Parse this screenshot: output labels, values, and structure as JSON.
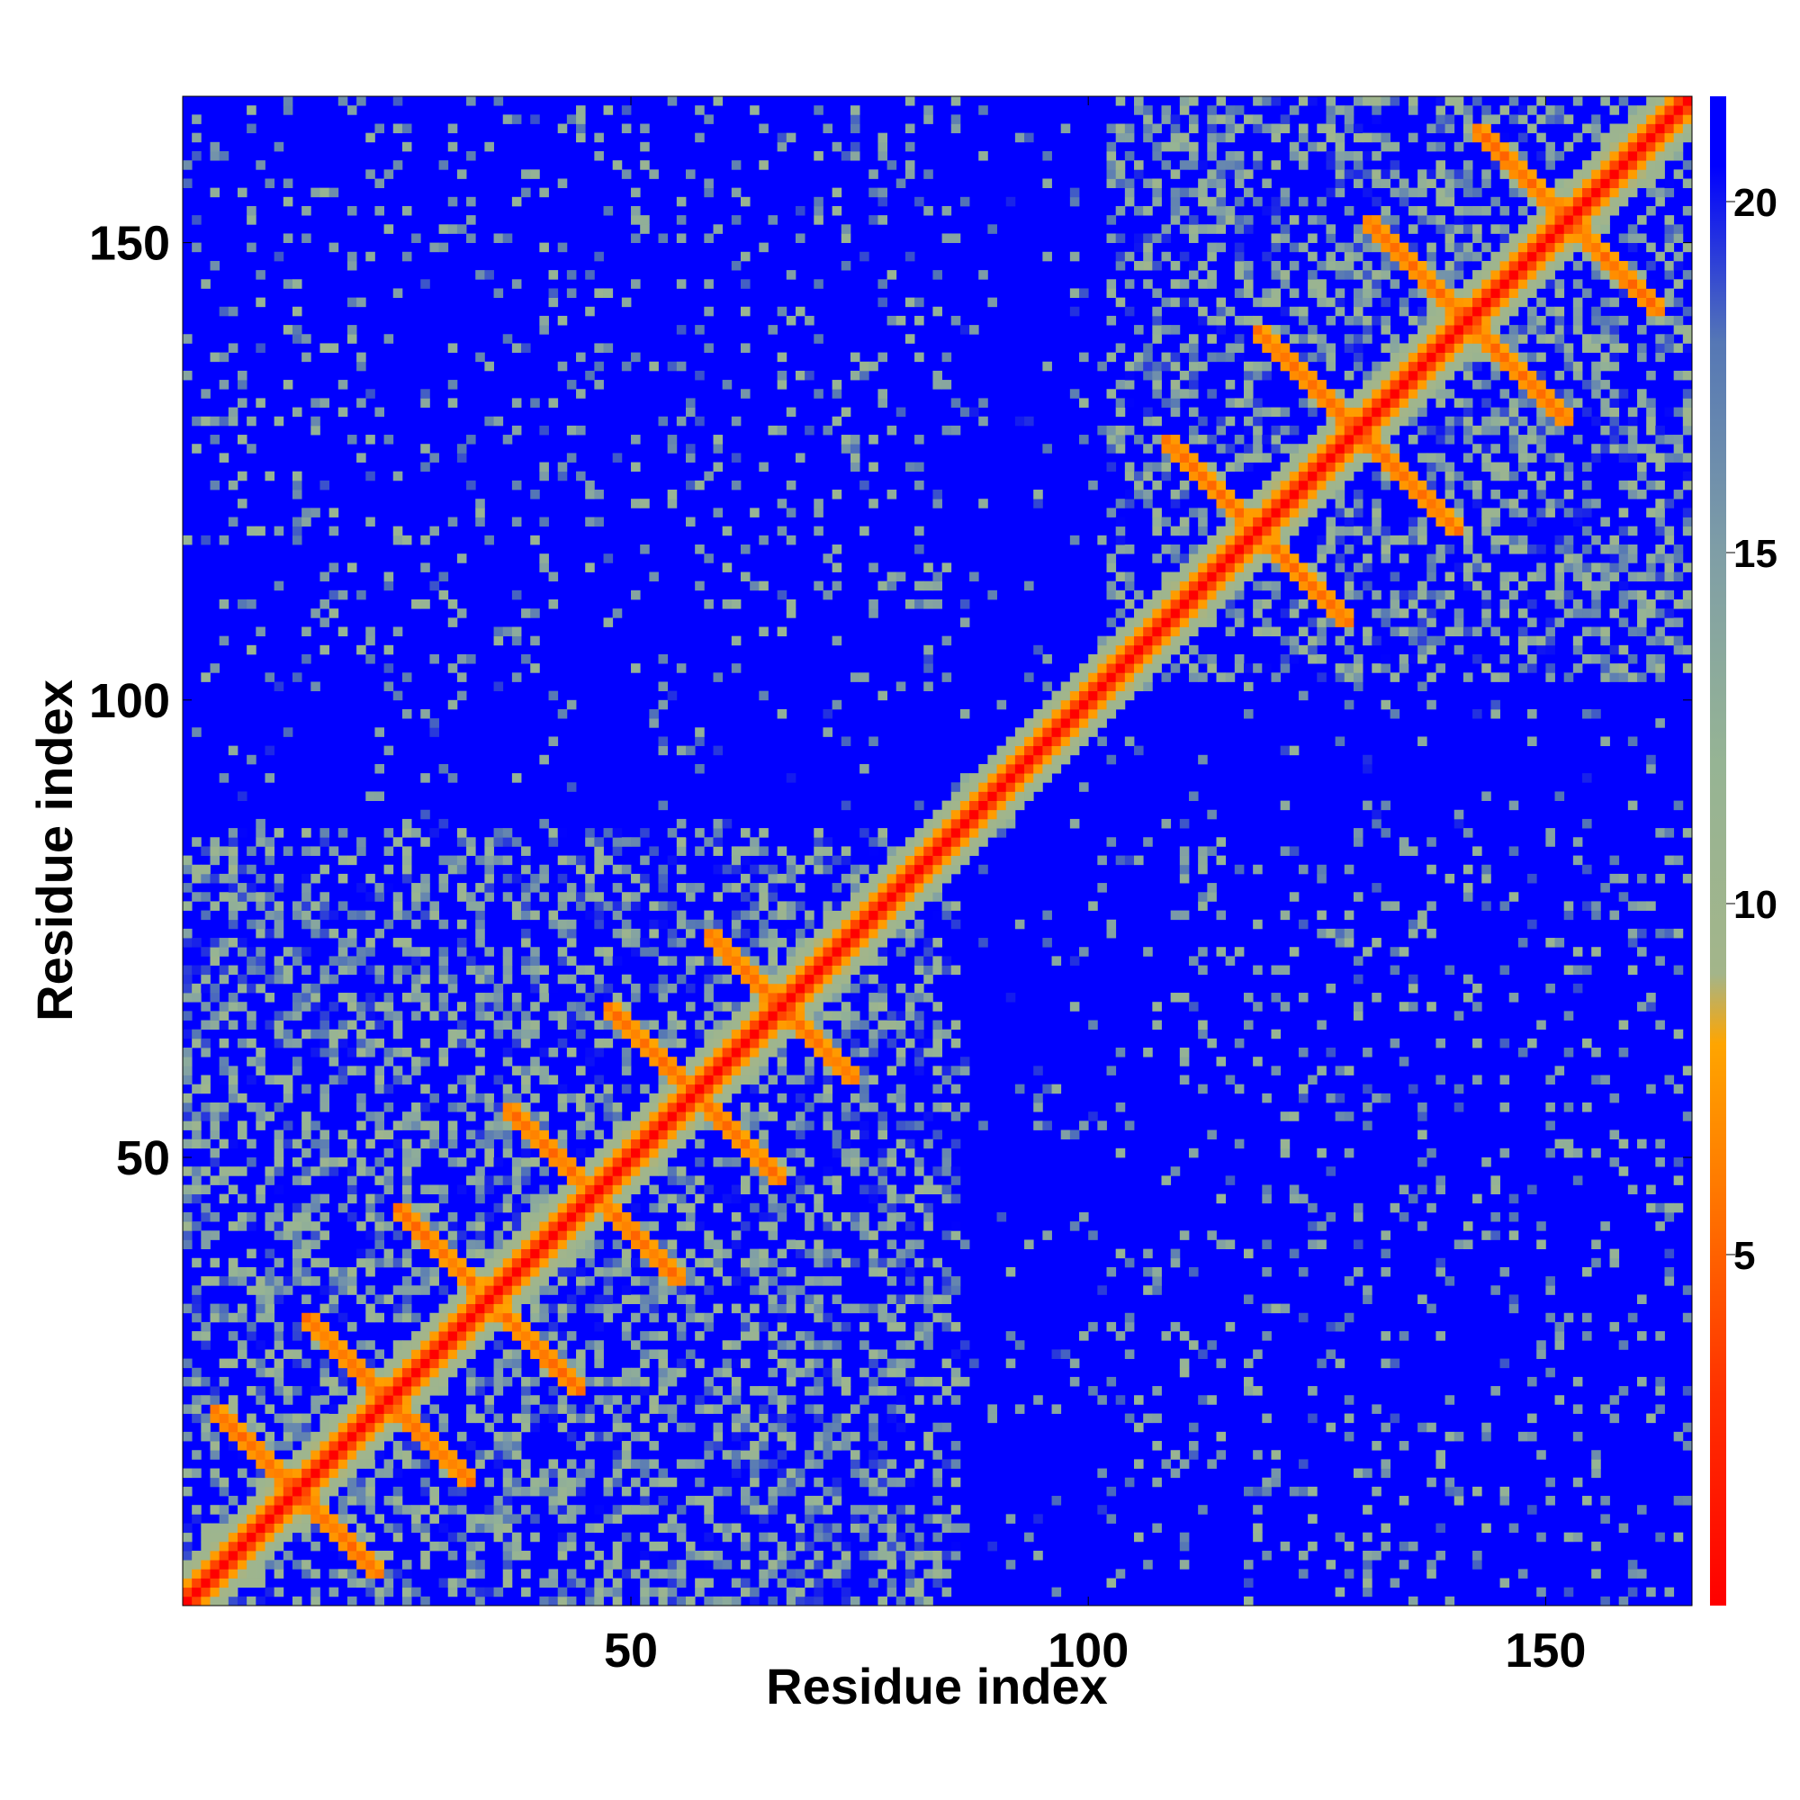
{
  "chart_data": {
    "type": "heatmap",
    "title": "",
    "xlabel": "Residue index",
    "ylabel": "Residue index",
    "xlim": [
      1,
      165
    ],
    "ylim": [
      1,
      165
    ],
    "x_ticks": [
      50,
      100,
      150
    ],
    "y_ticks": [
      50,
      100,
      150
    ],
    "x_tick_labels": [
      "50",
      "100",
      "150"
    ],
    "y_tick_labels": [
      "50",
      "100",
      "150"
    ],
    "colorbar": {
      "ticks": [
        5,
        10,
        15,
        20
      ],
      "tick_labels": [
        "5",
        "10",
        "15",
        "20"
      ],
      "range": [
        0,
        21.5
      ],
      "stops": [
        {
          "value": 0,
          "color": "#ff0000"
        },
        {
          "value": 3,
          "color": "#ff3000"
        },
        {
          "value": 6,
          "color": "#ff7a00"
        },
        {
          "value": 8,
          "color": "#ffa500"
        },
        {
          "value": 9,
          "color": "#a3b58a"
        },
        {
          "value": 12,
          "color": "#96b494"
        },
        {
          "value": 15,
          "color": "#7f9ea6"
        },
        {
          "value": 18,
          "color": "#5577b5"
        },
        {
          "value": 20.5,
          "color": "#0000ff"
        }
      ]
    },
    "grid": false,
    "matrix_description_note": "",
    "domains": [
      [
        1,
        85
      ],
      [
        102,
        165
      ]
    ],
    "beta_strands": [
      [
        4,
        12
      ],
      [
        14,
        22
      ],
      [
        24,
        32
      ],
      [
        36,
        44
      ],
      [
        47,
        55
      ],
      [
        58,
        66
      ],
      [
        68,
        74
      ],
      [
        108,
        116
      ],
      [
        118,
        128
      ],
      [
        130,
        140
      ],
      [
        142,
        152
      ],
      [
        154,
        162
      ]
    ]
  }
}
